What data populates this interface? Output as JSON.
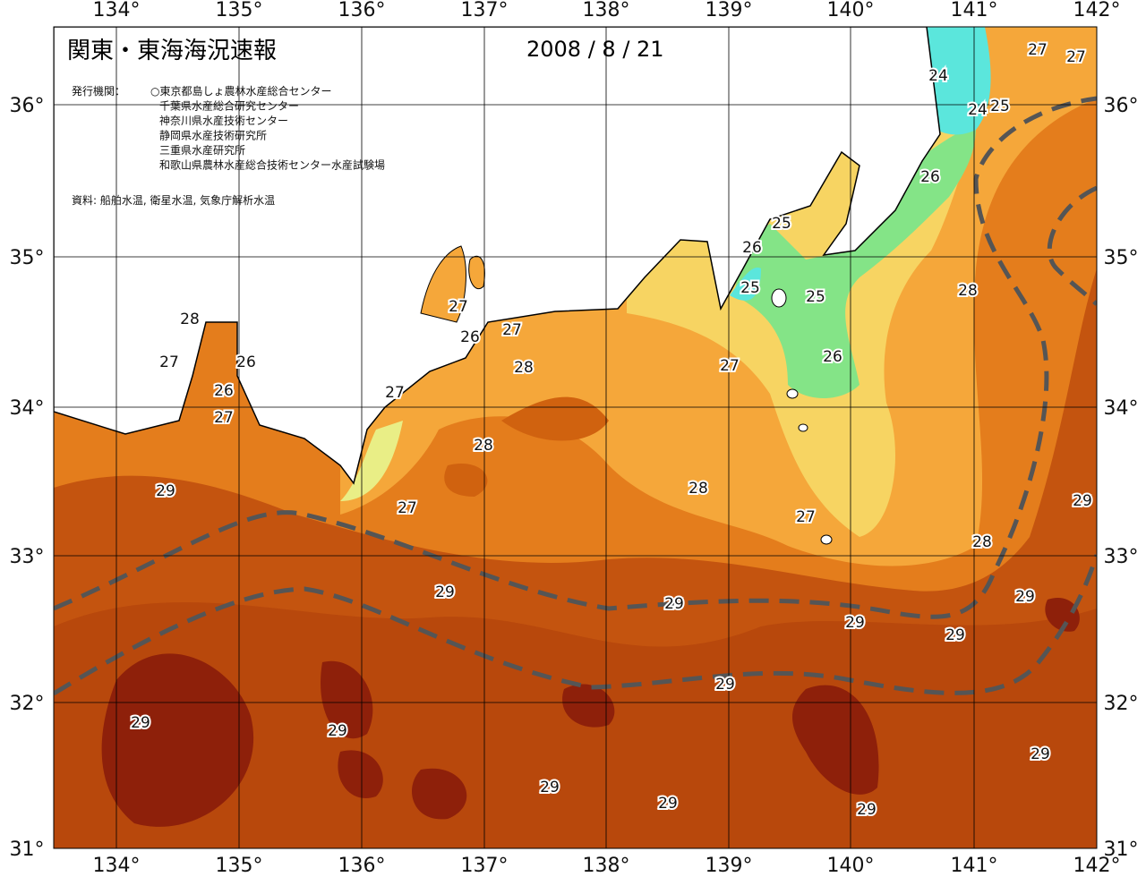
{
  "header": {
    "title": "関東・東海海況速報",
    "date": "2008 / 8 / 21"
  },
  "agencies": {
    "label": "発行機関：",
    "list": [
      "○東京都島しょ農林水産総合センター",
      "千葉県水産総合研究センター",
      "神奈川県水産技術センター",
      "静岡県水産技術研究所",
      "三重県水産研究所",
      "和歌山県農林水産総合技術センター水産試験場"
    ]
  },
  "source": "資料: 船舶水温, 衛星水温, 気象庁解析水温",
  "longitude_labels": [
    "134°",
    "135°",
    "136°",
    "137°",
    "138°",
    "139°",
    "140°",
    "141°",
    "142°"
  ],
  "latitude_labels": [
    "36°",
    "35°",
    "34°",
    "33°",
    "32°",
    "31°"
  ],
  "contour_labels": [
    28,
    27,
    26,
    26,
    27,
    29,
    27,
    26,
    27,
    28,
    27,
    28,
    27,
    29,
    28,
    27,
    27,
    29,
    29,
    29,
    29,
    29,
    29,
    29,
    29,
    29,
    29,
    29,
    28,
    28,
    26,
    25,
    25,
    26,
    25,
    26,
    24,
    24,
    25,
    27,
    27,
    29
  ]
}
